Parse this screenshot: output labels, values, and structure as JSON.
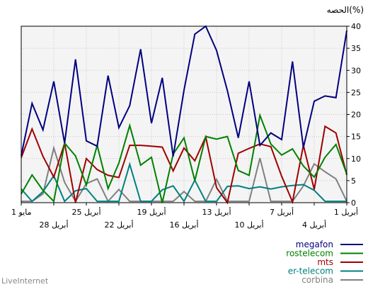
{
  "chart_data": {
    "type": "line",
    "title": "",
    "ylabel": "الحصه(%)",
    "ylim": [
      0,
      40
    ],
    "yticks": [
      0,
      5,
      10,
      15,
      20,
      25,
      30,
      35,
      40
    ],
    "x_direction": "right-to-left",
    "x_ticks_top": [
      "1 أبريل",
      "7 أبريل",
      "13 أبريل",
      "19 أبريل",
      "25 أبريل",
      "1 مايو"
    ],
    "x_ticks_bottom": [
      "4 أبريل",
      "10 أبريل",
      "16 أبريل",
      "22 أبريل",
      "28 أبريل"
    ],
    "grid": true,
    "legend_placement": "bottom-right",
    "series": [
      {
        "name": "megafon",
        "color": "#000080",
        "values": [
          39,
          23.8,
          24.2,
          23,
          12.5,
          32,
          14.3,
          15.8,
          13,
          27.5,
          14.7,
          25.4,
          34.5,
          40,
          38.2,
          25.5,
          10.5,
          28.3,
          18,
          34.8,
          22,
          17,
          28.8,
          12.8,
          14,
          32.5,
          13.5,
          27.5,
          16.5,
          22.5,
          10.7
        ]
      },
      {
        "name": "rostelecom",
        "color": "#008000",
        "values": [
          6.5,
          13.2,
          10.3,
          5.8,
          8.3,
          12.2,
          10.8,
          13.3,
          19.8,
          6.2,
          7.3,
          15,
          14.4,
          15,
          5,
          14.7,
          11,
          0,
          10.3,
          8.5,
          17.5,
          9,
          3.2,
          13,
          4,
          10.6,
          13.5,
          0.3,
          2.8,
          6.3,
          2
        ]
      },
      {
        "name": "mts",
        "color": "#a00000",
        "values": [
          6.3,
          15.8,
          17.3,
          3,
          13,
          0.2,
          6,
          12.7,
          13.3,
          12.3,
          11.2,
          0,
          3.4,
          14.9,
          9.5,
          12.4,
          7.2,
          12.6,
          12.8,
          13,
          13,
          5.7,
          6.2,
          7.5,
          10,
          0,
          13.5,
          5.8,
          10.5,
          16.7,
          10.2
        ]
      },
      {
        "name": "er-telecom",
        "color": "#008080",
        "values": [
          0.3,
          0.3,
          0.3,
          2.8,
          4.1,
          3.9,
          3.6,
          3.1,
          3.6,
          3.2,
          3.8,
          3.7,
          0.3,
          0.3,
          5.1,
          0.3,
          3.8,
          2.9,
          0.3,
          0.3,
          8.7,
          0.3,
          0.3,
          0.3,
          3.2,
          2.7,
          0.3,
          6.1,
          2.5,
          0.3,
          3.1
        ]
      },
      {
        "name": "corbina",
        "color": "#808080",
        "values": [
          0.3,
          5.4,
          7,
          8.8,
          3.8,
          0.3,
          0.3,
          0.3,
          10.1,
          0.3,
          0.3,
          0.3,
          5.3,
          0.3,
          0.3,
          2.5,
          0.3,
          0.3,
          0.3,
          0.3,
          0.3,
          3,
          0.3,
          5.4,
          4.3,
          0.3,
          4.6,
          12.4,
          2,
          0.3,
          0.3
        ]
      }
    ]
  },
  "branding": {
    "watermark": "LiveInternet"
  }
}
